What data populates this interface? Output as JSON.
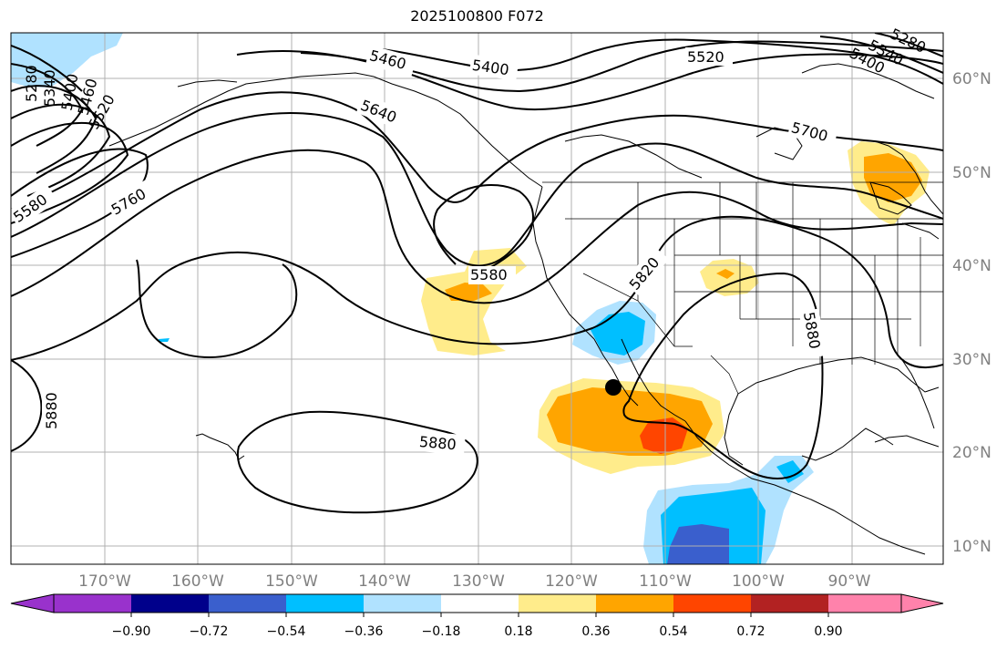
{
  "title": "2025100800 F072",
  "lat_labels": [
    "60°N",
    "50°N",
    "40°N",
    "30°N",
    "20°N",
    "10°N"
  ],
  "lon_labels": [
    "170°W",
    "160°W",
    "150°W",
    "140°W",
    "130°W",
    "120°W",
    "110°W",
    "100°W",
    "90°W"
  ],
  "contour_labels": {
    "c5460_top": "5460",
    "c5400_top": "5400",
    "c5520_top": "5520",
    "c5640": "5640",
    "c5700": "5700",
    "c5760": "5760",
    "c5580_left": "5580",
    "c5580_center": "5580",
    "c5820": "5820",
    "c5880_right": "5880",
    "c5880_pac": "5880",
    "c5880_left": "5880",
    "left_stack": [
      "5280",
      "5340",
      "5400",
      "5460",
      "5520"
    ],
    "right_stack": [
      "5280",
      "5340",
      "5400"
    ]
  },
  "colorbar": {
    "ticks": [
      "−0.90",
      "−0.72",
      "−0.54",
      "−0.36",
      "−0.18",
      "0.18",
      "0.36",
      "0.54",
      "0.72",
      "0.90"
    ],
    "colors": [
      "#9932cc",
      "#00008b",
      "#3a5fcd",
      "#00bfff",
      "#b0e2ff",
      "#ffffff",
      "#ffec8b",
      "#ffa500",
      "#ff4500",
      "#b22222",
      "#ff82ab"
    ]
  },
  "marker": "storm-center-dot"
}
